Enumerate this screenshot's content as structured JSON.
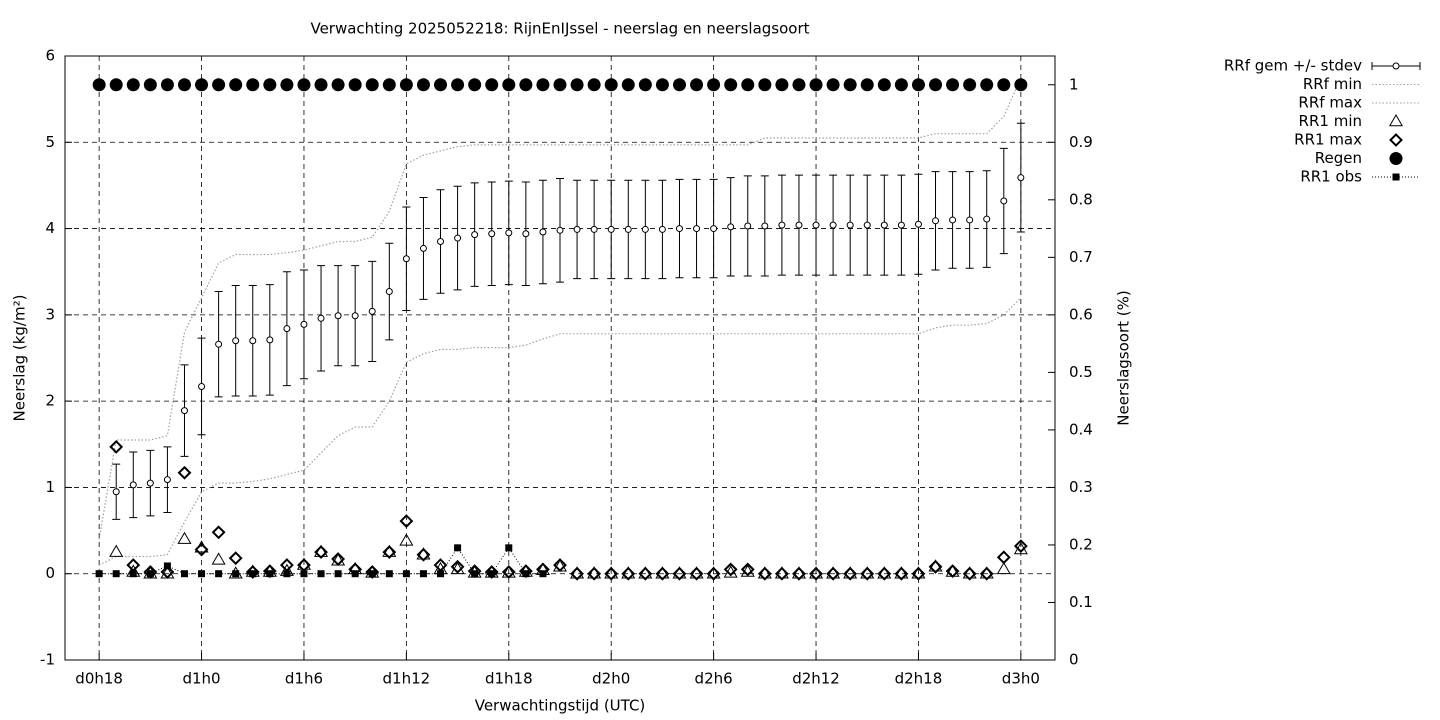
{
  "chart_data": {
    "type": "line",
    "title": "Verwachting 2025052218: RijnEnIJssel - neerslag en neerslagsoort",
    "x_label": "Verwachtingstijd (UTC)",
    "y_label": "Neerslag (kg/m²)",
    "y2_label": "Neerslagsoort (%)",
    "x": [
      18,
      19,
      20,
      21,
      22,
      23,
      24,
      25,
      26,
      27,
      28,
      29,
      30,
      31,
      32,
      33,
      34,
      35,
      36,
      37,
      38,
      39,
      40,
      41,
      42,
      43,
      44,
      45,
      46,
      47,
      48,
      49,
      50,
      51,
      52,
      53,
      54,
      55,
      56,
      57,
      58,
      59,
      60,
      61,
      62,
      63,
      64,
      65,
      66,
      67,
      68,
      69,
      70,
      71,
      72
    ],
    "xlim": [
      16,
      74
    ],
    "xticks": [
      {
        "value": 18,
        "label": "d0h18"
      },
      {
        "value": 24,
        "label": "d1h0"
      },
      {
        "value": 30,
        "label": "d1h6"
      },
      {
        "value": 36,
        "label": "d1h12"
      },
      {
        "value": 42,
        "label": "d1h18"
      },
      {
        "value": 48,
        "label": "d2h0"
      },
      {
        "value": 54,
        "label": "d2h6"
      },
      {
        "value": 60,
        "label": "d2h12"
      },
      {
        "value": 66,
        "label": "d2h18"
      },
      {
        "value": 72,
        "label": "d3h0"
      }
    ],
    "ylim": [
      -1,
      6
    ],
    "yticks": [
      -1,
      0,
      1,
      2,
      3,
      4,
      5,
      6
    ],
    "y2lim": [
      0,
      1.05
    ],
    "y2ticks": [
      0,
      0.1,
      0.2,
      0.3,
      0.4,
      0.5,
      0.6,
      0.7,
      0.8,
      0.9,
      1
    ],
    "grid": true,
    "legend": "outside-right",
    "series": [
      {
        "name": "RRf gem +/- stdev",
        "color": "#000000",
        "marker": "errorbar",
        "values": [
          null,
          0.95,
          1.03,
          1.05,
          1.09,
          1.89,
          2.17,
          2.66,
          2.7,
          2.7,
          2.71,
          2.84,
          2.89,
          2.96,
          2.99,
          2.99,
          3.04,
          3.27,
          3.65,
          3.77,
          3.85,
          3.89,
          3.93,
          3.94,
          3.95,
          3.94,
          3.96,
          3.98,
          3.99,
          3.99,
          3.99,
          3.99,
          3.99,
          3.99,
          4.0,
          4.0,
          4.0,
          4.02,
          4.03,
          4.03,
          4.04,
          4.04,
          4.04,
          4.04,
          4.04,
          4.04,
          4.04,
          4.04,
          4.05,
          4.09,
          4.1,
          4.1,
          4.11,
          4.32,
          4.59
        ],
        "errors": [
          null,
          0.32,
          0.38,
          0.38,
          0.38,
          0.53,
          0.56,
          0.61,
          0.64,
          0.64,
          0.64,
          0.66,
          0.63,
          0.61,
          0.58,
          0.58,
          0.58,
          0.56,
          0.6,
          0.59,
          0.6,
          0.6,
          0.6,
          0.6,
          0.6,
          0.6,
          0.6,
          0.6,
          0.57,
          0.57,
          0.57,
          0.57,
          0.57,
          0.57,
          0.57,
          0.57,
          0.57,
          0.57,
          0.58,
          0.58,
          0.58,
          0.58,
          0.58,
          0.58,
          0.58,
          0.58,
          0.58,
          0.58,
          0.58,
          0.57,
          0.56,
          0.56,
          0.56,
          0.61,
          0.63
        ]
      },
      {
        "name": "RRf min",
        "color": "#a0a0a0",
        "marker": "dotted-line",
        "values": [
          0.1,
          0.2,
          0.2,
          0.2,
          0.22,
          0.6,
          0.95,
          1.05,
          1.05,
          1.07,
          1.1,
          1.15,
          1.2,
          1.4,
          1.6,
          1.7,
          1.7,
          2.0,
          2.45,
          2.55,
          2.6,
          2.6,
          2.62,
          2.62,
          2.62,
          2.65,
          2.72,
          2.78,
          2.78,
          2.78,
          2.78,
          2.78,
          2.78,
          2.78,
          2.78,
          2.78,
          2.78,
          2.78,
          2.78,
          2.78,
          2.78,
          2.78,
          2.78,
          2.78,
          2.78,
          2.78,
          2.78,
          2.78,
          2.78,
          2.85,
          2.88,
          2.88,
          2.9,
          3.0,
          3.2
        ]
      },
      {
        "name": "RRf max",
        "color": "#a0a0a0",
        "marker": "dotted-line",
        "values": [
          0.4,
          1.55,
          1.55,
          1.55,
          1.6,
          2.8,
          3.2,
          3.6,
          3.7,
          3.7,
          3.7,
          3.72,
          3.75,
          3.8,
          3.85,
          3.85,
          3.9,
          4.2,
          4.75,
          4.85,
          4.9,
          4.95,
          4.97,
          4.97,
          4.97,
          4.97,
          4.97,
          4.97,
          4.97,
          4.97,
          4.97,
          4.97,
          4.97,
          4.97,
          4.97,
          4.97,
          4.97,
          4.97,
          4.97,
          5.05,
          5.05,
          5.05,
          5.05,
          5.05,
          5.05,
          5.05,
          5.05,
          5.05,
          5.05,
          5.1,
          5.1,
          5.1,
          5.1,
          5.3,
          5.75
        ]
      },
      {
        "name": "RR1 min",
        "color": "#000000",
        "marker": "triangle",
        "values": [
          null,
          0.25,
          0.02,
          0,
          0,
          0.4,
          0.3,
          0.16,
          0,
          0.02,
          0.02,
          0.03,
          0.1,
          0.25,
          0.15,
          0.05,
          0.01,
          0.25,
          0.38,
          0.22,
          0.05,
          0.05,
          0.01,
          0.01,
          0.01,
          0.02,
          0.04,
          0.08,
          0,
          0,
          0,
          0,
          0,
          0,
          0,
          0,
          0,
          0.01,
          0.02,
          0,
          0,
          0,
          0,
          0,
          0,
          0,
          0,
          0,
          0,
          0.08,
          0.02,
          0,
          0,
          0.05,
          0.28
        ]
      },
      {
        "name": "RR1 max",
        "color": "#000000",
        "marker": "diamond",
        "values": [
          null,
          1.47,
          0.1,
          0.02,
          0.02,
          1.17,
          0.28,
          0.48,
          0.18,
          0.02,
          0.03,
          0.1,
          0.1,
          0.25,
          0.17,
          0.05,
          0.02,
          0.25,
          0.61,
          0.22,
          0.1,
          0.08,
          0.03,
          0.02,
          0.02,
          0.03,
          0.05,
          0.1,
          0,
          0,
          0,
          0,
          0,
          0,
          0,
          0,
          0,
          0.05,
          0.05,
          0,
          0,
          0,
          0,
          0,
          0,
          0,
          0,
          0,
          0,
          0.08,
          0.03,
          0,
          0,
          0.19,
          0.32
        ]
      },
      {
        "name": "Regen",
        "color": "#000000",
        "marker": "dot",
        "axis": "y2",
        "values": [
          1,
          1,
          1,
          1,
          1,
          1,
          1,
          1,
          1,
          1,
          1,
          1,
          1,
          1,
          1,
          1,
          1,
          1,
          1,
          1,
          1,
          1,
          1,
          1,
          1,
          1,
          1,
          1,
          1,
          1,
          1,
          1,
          1,
          1,
          1,
          1,
          1,
          1,
          1,
          1,
          1,
          1,
          1,
          1,
          1,
          1,
          1,
          1,
          1,
          1,
          1,
          1,
          1,
          1,
          1
        ]
      },
      {
        "name": "RR1 obs",
        "color": "#000000",
        "marker": "square-line",
        "values": [
          0,
          0,
          0,
          0,
          0.09,
          0,
          0,
          0,
          0,
          0,
          0,
          0,
          0,
          0,
          0,
          0,
          0,
          0,
          0,
          0,
          0,
          0.3,
          0,
          0,
          0.3,
          0,
          0,
          null,
          null,
          null,
          null,
          null,
          null,
          null,
          null,
          null,
          null,
          null,
          null,
          null,
          null,
          null,
          null,
          null,
          null,
          null,
          null,
          null,
          null,
          null,
          null,
          null,
          null,
          null,
          null
        ]
      }
    ]
  }
}
